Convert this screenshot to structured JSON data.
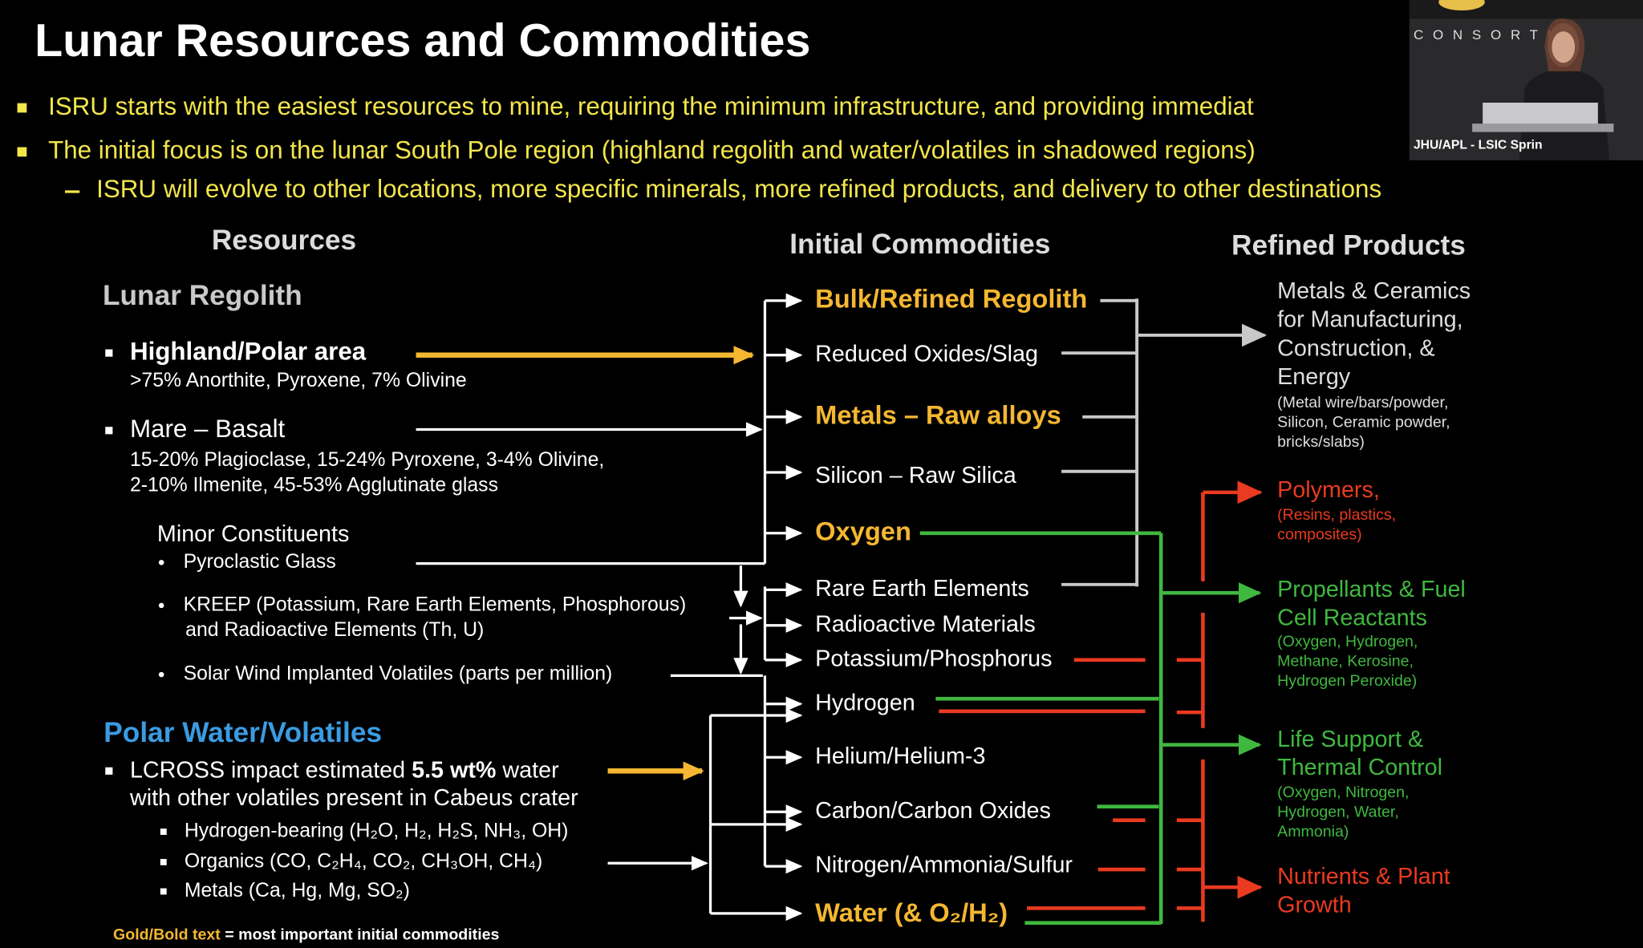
{
  "header": {
    "title": "Lunar Resources and Commodities"
  },
  "webcam": {
    "logo": "CONSORTIU",
    "caption": "JHU/APL - LSIC Sprin"
  },
  "bullets": [
    "ISRU starts with the easiest resources to mine, requiring the minimum infrastructure, and providing immediat",
    "The initial focus is on the lunar South Pole region (highland regolith and water/volatiles in shadowed regions)"
  ],
  "sub_bullet": "ISRU will evolve to other locations, more specific minerals, more refined products, and delivery to other destinations",
  "columns": {
    "resources": "Resources",
    "commodities": "Initial Commodities",
    "products": "Refined Products"
  },
  "resources": {
    "regolith": {
      "heading": "Lunar Regolith",
      "highland": {
        "name": "Highland/Polar area",
        "detail": ">75% Anorthite, Pyroxene, 7% Olivine"
      },
      "mare": {
        "name": "Mare – Basalt",
        "detail": [
          "15-20% Plagioclase, 15-24% Pyroxene, 3-4% Olivine,",
          "2-10% Ilmenite, 45-53% Agglutinate glass"
        ]
      },
      "minor": {
        "heading": "Minor Constituents",
        "items": [
          [
            "Pyroclastic Glass"
          ],
          [
            "KREEP (Potassium, Rare Earth Elements, Phosphorous)",
            "and Radioactive Elements (Th, U)"
          ],
          [
            "Solar Wind Implanted Volatiles (parts per million)"
          ]
        ]
      }
    },
    "polar": {
      "heading": "Polar Water/Volatiles",
      "lcross": {
        "before": "LCROSS impact estimated",
        "bold": "5.5 wt%",
        "after": "water",
        "line2": "with other volatiles present in Cabeus crater"
      },
      "items": [
        "Hydrogen-bearing (H₂O, H₂, H₂S, NH₃, OH)",
        "Organics (CO, C₂H₄, CO₂, CH₃OH, CH₄)",
        "Metals (Ca, Hg, Mg, SO₂)"
      ]
    }
  },
  "commodities": [
    "Bulk/Refined Regolith",
    "Reduced Oxides/Slag",
    "Metals – Raw alloys",
    "Silicon – Raw Silica",
    "Oxygen",
    "Rare Earth Elements",
    "Radioactive Materials",
    "Potassium/Phosphorus",
    "Hydrogen",
    "Helium/Helium-3",
    "Carbon/Carbon Oxides",
    "Nitrogen/Ammonia/Sulfur",
    "Water (& O₂/H₂)"
  ],
  "products": [
    {
      "lines": [
        "Metals & Ceramics",
        "for Manufacturing,",
        "Construction, &",
        "Energy"
      ],
      "detail": [
        "(Metal wire/bars/powder,",
        "Silicon, Ceramic powder,",
        "bricks/slabs)"
      ]
    },
    {
      "lines": [
        "Polymers,"
      ],
      "detail": [
        "(Resins, plastics,",
        "composites)"
      ]
    },
    {
      "lines": [
        "Propellants & Fuel",
        "Cell Reactants"
      ],
      "detail": [
        "(Oxygen, Hydrogen,",
        "Methane, Kerosine,",
        "Hydrogen Peroxide)"
      ]
    },
    {
      "lines": [
        "Life Support &",
        "Thermal Control"
      ],
      "detail": [
        "(Oxygen, Nitrogen,",
        "Hydrogen, Water,",
        "Ammonia)"
      ]
    },
    {
      "lines": [
        "Nutrients & Plant",
        "Growth"
      ],
      "detail": []
    }
  ],
  "footnote": {
    "highlight": "Gold/Bold text",
    "rest": "= most important initial commodities"
  }
}
